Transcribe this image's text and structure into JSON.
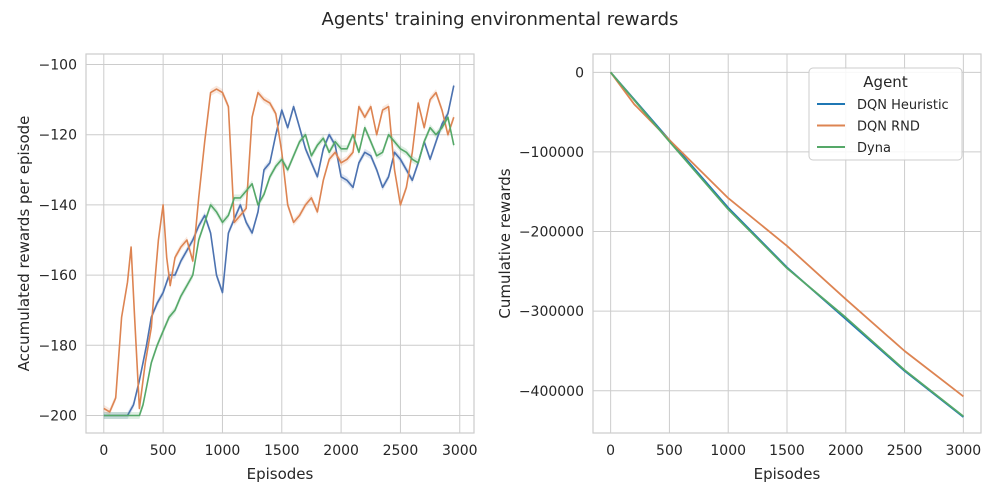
{
  "figure": {
    "title": "Agents' training environmental rewards"
  },
  "chart_data": [
    {
      "type": "line",
      "title": "",
      "xlabel": "Episodes",
      "ylabel": "Accumulated rewards per episode",
      "xlim": [
        -150,
        3120
      ],
      "ylim": [
        -205,
        -97
      ],
      "xticks": [
        0,
        500,
        1000,
        1500,
        2000,
        2500,
        3000
      ],
      "yticks": [
        -200,
        -180,
        -160,
        -140,
        -120,
        -100
      ],
      "grid": true,
      "band": "shaded confidence band around each line",
      "series": [
        {
          "name": "DQN Heuristic",
          "color": "#4c72b0",
          "x": [
            0,
            100,
            200,
            250,
            300,
            330,
            360,
            400,
            450,
            500,
            550,
            600,
            650,
            700,
            750,
            800,
            850,
            900,
            950,
            1000,
            1050,
            1100,
            1150,
            1200,
            1250,
            1300,
            1350,
            1400,
            1450,
            1500,
            1550,
            1600,
            1650,
            1700,
            1750,
            1800,
            1850,
            1900,
            1950,
            2000,
            2050,
            2100,
            2150,
            2200,
            2250,
            2300,
            2350,
            2400,
            2450,
            2500,
            2550,
            2600,
            2650,
            2700,
            2750,
            2800,
            2850,
            2900,
            2950
          ],
          "values": [
            -200,
            -200,
            -200,
            -197,
            -190,
            -185,
            -180,
            -172,
            -168,
            -165,
            -160,
            -160,
            -156,
            -153,
            -150,
            -146,
            -143,
            -148,
            -160,
            -165,
            -148,
            -144,
            -140,
            -145,
            -148,
            -142,
            -130,
            -128,
            -120,
            -113,
            -118,
            -112,
            -118,
            -124,
            -128,
            -132,
            -124,
            -120,
            -123,
            -132,
            -133,
            -135,
            -128,
            -125,
            -126,
            -130,
            -135,
            -132,
            -125,
            -127,
            -130,
            -133,
            -128,
            -122,
            -127,
            -122,
            -117,
            -114,
            -106
          ]
        },
        {
          "name": "DQN RND",
          "color": "#dd8452",
          "x": [
            0,
            50,
            100,
            150,
            200,
            230,
            260,
            300,
            350,
            400,
            430,
            460,
            500,
            530,
            560,
            600,
            650,
            700,
            750,
            800,
            850,
            900,
            950,
            1000,
            1050,
            1100,
            1150,
            1200,
            1250,
            1300,
            1350,
            1400,
            1450,
            1500,
            1550,
            1600,
            1650,
            1700,
            1750,
            1800,
            1850,
            1900,
            1950,
            2000,
            2050,
            2100,
            2150,
            2200,
            2250,
            2300,
            2350,
            2400,
            2450,
            2500,
            2550,
            2600,
            2650,
            2700,
            2750,
            2800,
            2850,
            2900,
            2950
          ],
          "values": [
            -198,
            -199,
            -195,
            -172,
            -162,
            -152,
            -172,
            -198,
            -185,
            -175,
            -162,
            -150,
            -140,
            -155,
            -163,
            -155,
            -152,
            -150,
            -156,
            -138,
            -122,
            -108,
            -107,
            -108,
            -112,
            -145,
            -143,
            -141,
            -115,
            -108,
            -110,
            -111,
            -114,
            -125,
            -140,
            -145,
            -143,
            -140,
            -138,
            -142,
            -133,
            -127,
            -125,
            -128,
            -127,
            -125,
            -112,
            -115,
            -112,
            -120,
            -113,
            -112,
            -130,
            -140,
            -135,
            -125,
            -111,
            -118,
            -110,
            -108,
            -113,
            -120,
            -115
          ]
        },
        {
          "name": "Dyna",
          "color": "#55a868",
          "x": [
            0,
            100,
            200,
            300,
            330,
            360,
            400,
            450,
            500,
            550,
            600,
            650,
            700,
            750,
            800,
            850,
            900,
            950,
            1000,
            1050,
            1100,
            1150,
            1200,
            1250,
            1300,
            1350,
            1400,
            1450,
            1500,
            1550,
            1600,
            1650,
            1700,
            1750,
            1800,
            1850,
            1900,
            1950,
            2000,
            2050,
            2100,
            2150,
            2200,
            2250,
            2300,
            2350,
            2400,
            2450,
            2500,
            2550,
            2600,
            2650,
            2700,
            2750,
            2800,
            2850,
            2900,
            2950
          ],
          "values": [
            -200,
            -200,
            -200,
            -200,
            -197,
            -192,
            -185,
            -180,
            -176,
            -172,
            -170,
            -166,
            -163,
            -160,
            -150,
            -145,
            -140,
            -142,
            -145,
            -143,
            -138,
            -138,
            -136,
            -134,
            -140,
            -137,
            -132,
            -129,
            -127,
            -130,
            -126,
            -122,
            -120,
            -126,
            -123,
            -121,
            -125,
            -122,
            -124,
            -124,
            -120,
            -125,
            -118,
            -122,
            -126,
            -125,
            -120,
            -122,
            -124,
            -125,
            -127,
            -128,
            -122,
            -118,
            -120,
            -118,
            -115,
            -123
          ]
        }
      ]
    },
    {
      "type": "line",
      "title": "",
      "xlabel": "Episodes",
      "ylabel": "Cumulative rewards",
      "xlim": [
        -150,
        3150
      ],
      "ylim": [
        -453000,
        23000
      ],
      "xticks": [
        0,
        500,
        1000,
        1500,
        2000,
        2500,
        3000
      ],
      "yticks": [
        0,
        -100000,
        -200000,
        -300000,
        -400000
      ],
      "grid": true,
      "legend_title": "Agent",
      "legend_position": "top-right",
      "series": [
        {
          "name": "DQN Heuristic",
          "color": "#1f77b4",
          "x": [
            0,
            500,
            1000,
            1500,
            2000,
            2500,
            3000
          ],
          "values": [
            0,
            -85000,
            -170000,
            -245000,
            -310000,
            -375000,
            -433000
          ]
        },
        {
          "name": "DQN RND",
          "color": "#dd8452",
          "x": [
            0,
            200,
            500,
            1000,
            1500,
            2000,
            2500,
            3000
          ],
          "values": [
            0,
            -40000,
            -85000,
            -158000,
            -218000,
            -285000,
            -350000,
            -407000
          ]
        },
        {
          "name": "Dyna",
          "color": "#55a868",
          "x": [
            0,
            500,
            1000,
            1500,
            2000,
            2500,
            3000
          ],
          "values": [
            0,
            -87000,
            -172000,
            -246000,
            -308000,
            -374000,
            -432000
          ]
        }
      ]
    }
  ]
}
